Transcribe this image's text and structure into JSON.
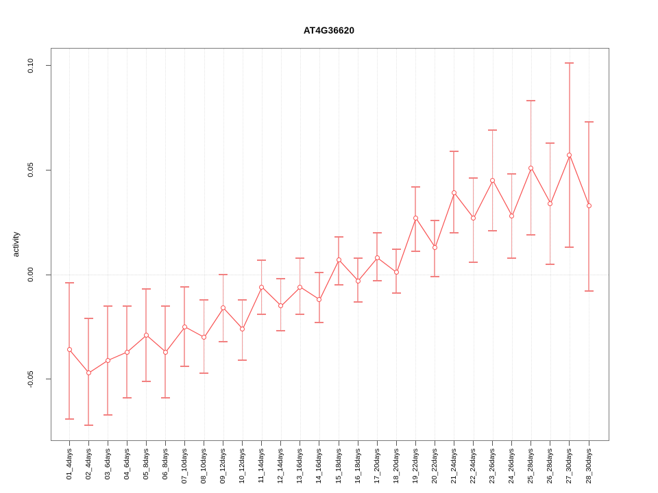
{
  "chart_data": {
    "type": "line",
    "subtype": "means-with-error-bars",
    "title": "AT4G36620",
    "xlabel": "",
    "ylabel": "activity",
    "legend": {
      "visible": false
    },
    "grid": {
      "vertical_dotted_per_category": true,
      "horizontal_dotted_zero_line": true
    },
    "ylim": [
      -0.079,
      0.108
    ],
    "yticks": [
      {
        "label": "0.10",
        "value": 0.1
      },
      {
        "label": "0.05",
        "value": 0.05
      },
      {
        "label": "0.00",
        "value": 0.0
      },
      {
        "label": "-0.05",
        "value": -0.05
      }
    ],
    "categories": [
      "01_4days",
      "02_4days",
      "03_6days",
      "04_6days",
      "05_8days",
      "06_8days",
      "07_10days",
      "08_10days",
      "09_12days",
      "10_12days",
      "11_14days",
      "12_14days",
      "13_16days",
      "14_16days",
      "15_18days",
      "16_18days",
      "17_20days",
      "18_20days",
      "19_22days",
      "20_22days",
      "21_24days",
      "22_24days",
      "23_26days",
      "24_26days",
      "25_28days",
      "26_28days",
      "27_30days",
      "28_30days"
    ],
    "series": [
      {
        "name": "mean activity",
        "marker": "open-circle",
        "values": [
          -0.036,
          -0.047,
          -0.041,
          -0.037,
          -0.029,
          -0.037,
          -0.025,
          -0.03,
          -0.016,
          -0.026,
          -0.006,
          -0.015,
          -0.006,
          -0.012,
          0.007,
          -0.003,
          0.008,
          0.001,
          0.027,
          0.013,
          0.039,
          0.027,
          0.045,
          0.028,
          0.051,
          0.034,
          0.057,
          0.033
        ],
        "ci_low": [
          -0.069,
          -0.072,
          -0.067,
          -0.059,
          -0.051,
          -0.059,
          -0.044,
          -0.047,
          -0.032,
          -0.041,
          -0.019,
          -0.027,
          -0.019,
          -0.023,
          -0.005,
          -0.013,
          -0.003,
          -0.009,
          0.011,
          -0.001,
          0.02,
          0.006,
          0.021,
          0.008,
          0.019,
          0.005,
          0.013,
          -0.008
        ],
        "ci_high": [
          -0.004,
          -0.021,
          -0.015,
          -0.015,
          -0.007,
          -0.015,
          -0.006,
          -0.012,
          0.0,
          -0.012,
          0.007,
          -0.002,
          0.008,
          0.001,
          0.018,
          0.008,
          0.02,
          0.012,
          0.042,
          0.026,
          0.059,
          0.046,
          0.069,
          0.048,
          0.083,
          0.063,
          0.101,
          0.073
        ]
      }
    ]
  },
  "colors": {
    "series": "#f85050",
    "error_bar": "#f5a2a2",
    "error_cap": "#f28080",
    "grid": "#e4e4e4",
    "zero_line": "#dcdcdc",
    "axis_box": "#7a7a7a",
    "tick": "#555555",
    "text": "#000000",
    "background": "#ffffff"
  }
}
